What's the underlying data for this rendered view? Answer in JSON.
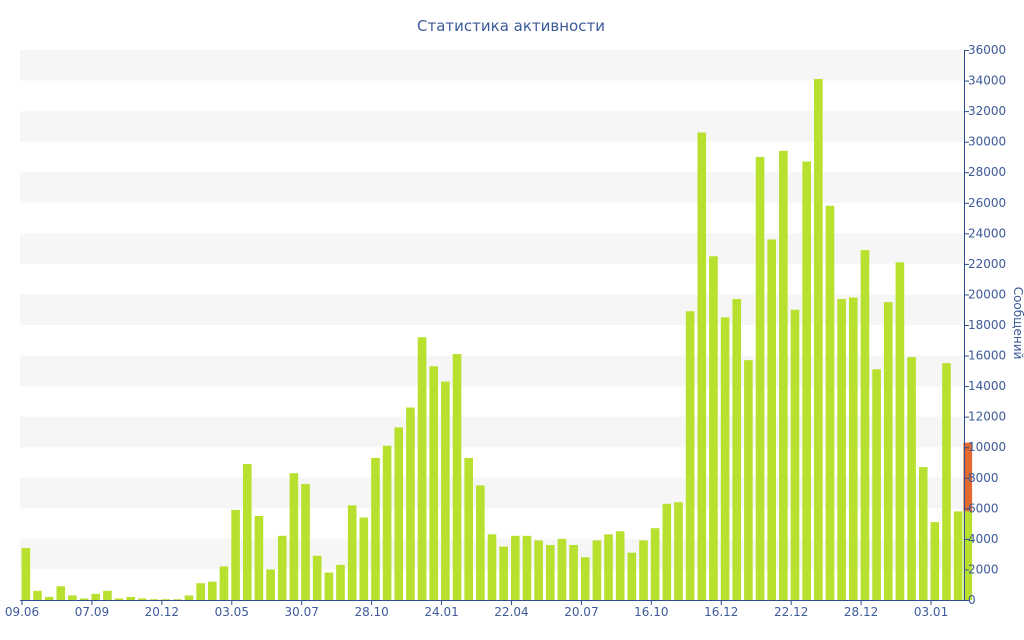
{
  "colors": {
    "bar": "#b8e02f",
    "last_bar": "#e4692f",
    "text": "#3d5a99",
    "band": "#f6f6f6",
    "axis": "#2f4c8c"
  },
  "chart_data": {
    "type": "bar",
    "title": "Статистика активности",
    "xlabel": "",
    "ylabel": "Сообщений",
    "ylim": [
      0,
      36000
    ],
    "yticks": [
      0,
      2000,
      4000,
      6000,
      8000,
      10000,
      12000,
      14000,
      16000,
      18000,
      20000,
      22000,
      24000,
      26000,
      28000,
      30000,
      32000,
      34000,
      36000
    ],
    "ytick_labels": [
      "0",
      "2000",
      "4000",
      "6000",
      "8000",
      "10000",
      "12000",
      "14000",
      "16000",
      "18000",
      "20000",
      "22000",
      "24000",
      "26000",
      "28000",
      "30000",
      "32000",
      "34000",
      "36000"
    ],
    "y_axis_position": "right",
    "grid": "alternating horizontal bands",
    "xtick_labels": [
      {
        "index": 0,
        "label": "09.06"
      },
      {
        "index": 6,
        "label": "07.09"
      },
      {
        "index": 12,
        "label": "20.12"
      },
      {
        "index": 18,
        "label": "03.05"
      },
      {
        "index": 24,
        "label": "30.07"
      },
      {
        "index": 30,
        "label": "28.10"
      },
      {
        "index": 36,
        "label": "24.01"
      },
      {
        "index": 42,
        "label": "22.04"
      },
      {
        "index": 48,
        "label": "20.07"
      },
      {
        "index": 54,
        "label": "16.10"
      },
      {
        "index": 60,
        "label": "16.12"
      },
      {
        "index": 66,
        "label": "22.12"
      },
      {
        "index": 72,
        "label": "28.12"
      },
      {
        "index": 78,
        "label": "03.01"
      }
    ],
    "series": [
      {
        "values": [
          3400,
          600,
          200,
          900,
          300,
          100,
          400,
          600,
          100,
          200,
          100,
          50,
          50,
          50,
          300,
          1100,
          1200,
          2200,
          5900,
          8900,
          5500,
          2000,
          4200,
          8300,
          7600,
          2900,
          1800,
          2300,
          6200,
          5400,
          9300,
          10100,
          11300,
          12600,
          17200,
          15300,
          14300,
          16100,
          9300,
          7500,
          4300,
          3500,
          4200,
          4200,
          3900,
          3600,
          4000,
          3600,
          2800,
          3900,
          4300,
          4500,
          3100,
          3900,
          4700,
          6300,
          6400,
          18900,
          30600,
          22500,
          18500,
          19700,
          15700,
          29000,
          23600,
          29400,
          19000,
          28700,
          34100,
          25800,
          19700,
          19800,
          22900,
          15100,
          19500,
          22100,
          15900,
          8700,
          5100,
          15500,
          5800
        ],
        "last_value_partial_highlight": 10300
      }
    ]
  }
}
